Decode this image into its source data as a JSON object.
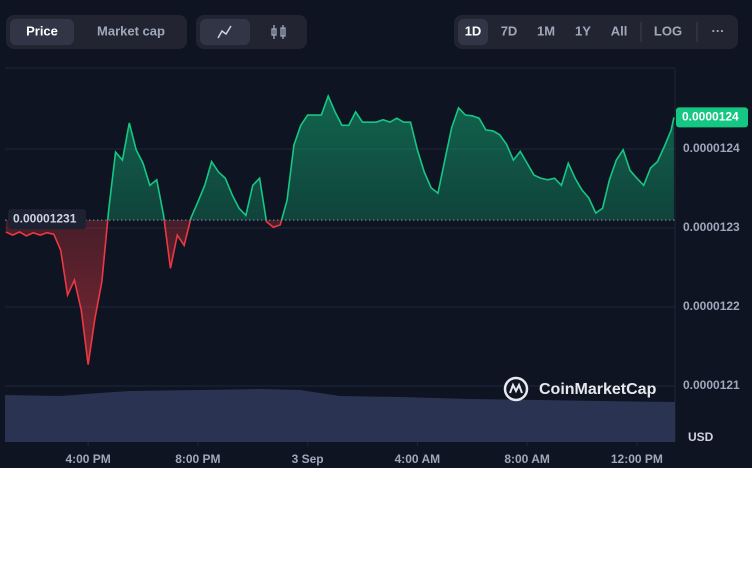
{
  "toolbar": {
    "views": [
      "Price",
      "Market cap"
    ],
    "ranges": [
      "1D",
      "7D",
      "1M",
      "1Y",
      "All"
    ],
    "log": "LOG",
    "more": "···"
  },
  "chart_data": {
    "type": "baseline-line",
    "x": [
      13,
      13.25,
      13.5,
      13.75,
      14,
      14.25,
      14.5,
      14.75,
      15,
      15.25,
      15.5,
      15.75,
      16,
      16.25,
      16.5,
      16.75,
      17,
      17.25,
      17.5,
      17.75,
      18,
      18.25,
      18.5,
      18.75,
      19,
      19.25,
      19.5,
      19.75,
      20,
      20.25,
      20.5,
      20.75,
      21,
      21.25,
      21.5,
      21.75,
      22,
      22.25,
      22.5,
      22.75,
      23,
      23.25,
      23.5,
      23.75,
      24,
      24.25,
      24.5,
      24.75,
      25,
      25.25,
      25.5,
      25.75,
      26,
      26.25,
      26.5,
      26.75,
      27,
      27.25,
      27.5,
      27.75,
      28,
      28.25,
      28.5,
      28.75,
      29,
      29.25,
      29.5,
      29.75,
      30,
      30.25,
      30.5,
      30.75,
      31,
      31.25,
      31.5,
      31.75,
      32,
      32.25,
      32.5,
      32.75,
      33,
      33.25,
      33.5,
      33.75,
      34,
      34.25,
      34.5,
      34.75,
      35,
      35.25,
      35.5,
      35.75,
      36,
      36.25,
      36.5,
      36.75,
      37,
      37.25,
      37.35
    ],
    "series": [
      {
        "color": "#16c784",
        "below_color": "#ea3943",
        "values": [
          1.2295e-05,
          1.2291e-05,
          1.2295e-05,
          1.229e-05,
          1.2294e-05,
          1.2291e-05,
          1.2294e-05,
          1.2292e-05,
          1.2272e-05,
          1.2215e-05,
          1.2234e-05,
          1.2196e-05,
          1.2127e-05,
          1.2186e-05,
          1.2232e-05,
          1.2323e-05,
          1.2396e-05,
          1.2386e-05,
          1.2433e-05,
          1.2399e-05,
          1.2382e-05,
          1.2354e-05,
          1.2361e-05,
          1.2316e-05,
          1.2249e-05,
          1.2291e-05,
          1.2278e-05,
          1.2313e-05,
          1.2333e-05,
          1.2354e-05,
          1.2384e-05,
          1.2371e-05,
          1.2363e-05,
          1.2342e-05,
          1.2325e-05,
          1.2316e-05,
          1.2354e-05,
          1.2363e-05,
          1.2308e-05,
          1.2301e-05,
          1.2304e-05,
          1.2335e-05,
          1.2405e-05,
          1.243e-05,
          1.2443e-05,
          1.2443e-05,
          1.2443e-05,
          1.2467e-05,
          1.2447e-05,
          1.243e-05,
          1.243e-05,
          1.2447e-05,
          1.2434e-05,
          1.2434e-05,
          1.2434e-05,
          1.2437e-05,
          1.2434e-05,
          1.2439e-05,
          1.2434e-05,
          1.2434e-05,
          1.2399e-05,
          1.2371e-05,
          1.2351e-05,
          1.2344e-05,
          1.2386e-05,
          1.2427e-05,
          1.2452e-05,
          1.2443e-05,
          1.2442e-05,
          1.2439e-05,
          1.2424e-05,
          1.2423e-05,
          1.2418e-05,
          1.2406e-05,
          1.2386e-05,
          1.2397e-05,
          1.2382e-05,
          1.2367e-05,
          1.2363e-05,
          1.2361e-05,
          1.2363e-05,
          1.2354e-05,
          1.2382e-05,
          1.2363e-05,
          1.2348e-05,
          1.2338e-05,
          1.2319e-05,
          1.2325e-05,
          1.2361e-05,
          1.2386e-05,
          1.2399e-05,
          1.2373e-05,
          1.2363e-05,
          1.2354e-05,
          1.2376e-05,
          1.2384e-05,
          1.2403e-05,
          1.2424e-05,
          1.244e-05
        ]
      }
    ],
    "baseline": 1.231e-05,
    "last_price_label": "0.0000124",
    "ylabel": "USD",
    "watermark": "CoinMarketCap",
    "xlim": [
      12.97,
      37.39
    ],
    "xticks": [
      {
        "value": 16,
        "label": "4:00 PM"
      },
      {
        "value": 20,
        "label": "8:00 PM"
      },
      {
        "value": 24,
        "label": "3 Sep"
      },
      {
        "value": 28,
        "label": "4:00 AM"
      },
      {
        "value": 32,
        "label": "8:00 AM"
      },
      {
        "value": 36,
        "label": "12:00 PM"
      }
    ],
    "ylim": [
      1.203e-05,
      1.25e-05
    ],
    "yticks": [
      1.21e-05,
      1.22e-05,
      1.23e-05,
      1.24e-05
    ],
    "grid": true
  }
}
